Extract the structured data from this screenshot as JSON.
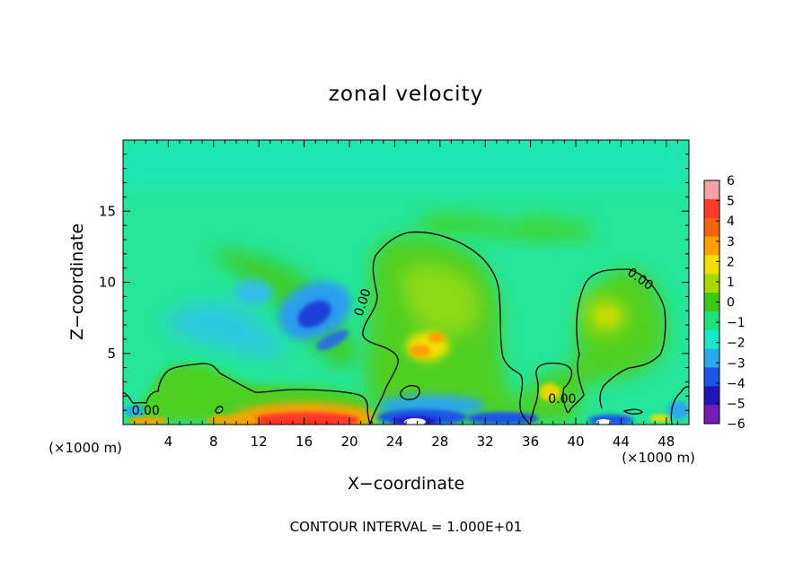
{
  "chart_data": {
    "type": "heatmap",
    "title": "zonal velocity",
    "xlabel": "X−coordinate",
    "ylabel": "Z−coordinate",
    "x_unit_left": "(×1000 m)",
    "x_unit_right": "(×1000 m)",
    "xlim": [
      0,
      50
    ],
    "ylim": [
      0,
      20
    ],
    "x_ticks": [
      {
        "value": 4,
        "label": "4"
      },
      {
        "value": 8,
        "label": "8"
      },
      {
        "value": 12,
        "label": "12"
      },
      {
        "value": 16,
        "label": "16"
      },
      {
        "value": 20,
        "label": "20"
      },
      {
        "value": 24,
        "label": "24"
      },
      {
        "value": 28,
        "label": "28"
      },
      {
        "value": 32,
        "label": "32"
      },
      {
        "value": 36,
        "label": "36"
      },
      {
        "value": 40,
        "label": "40"
      },
      {
        "value": 44,
        "label": "44"
      },
      {
        "value": 48,
        "label": "48"
      }
    ],
    "y_ticks": [
      {
        "value": 5,
        "label": "5"
      },
      {
        "value": 10,
        "label": "10"
      },
      {
        "value": 15,
        "label": "15"
      }
    ],
    "colorbar": {
      "range": [
        -6,
        6
      ],
      "labels": [
        "6",
        "5",
        "4",
        "3",
        "2",
        "1",
        "0",
        "−1",
        "−2",
        "−3",
        "−4",
        "−5",
        "−6"
      ],
      "colors": [
        "#f3a3a3",
        "#ff3b2a",
        "#f5640c",
        "#ffa000",
        "#f2df00",
        "#a6d900",
        "#3dc81a",
        "#1fe07a",
        "#19e8c8",
        "#2aa7ee",
        "#1f55e6",
        "#2016b8",
        "#7a1bb5"
      ]
    },
    "contour_labels": [
      {
        "x": 21.5,
        "z": 8.5,
        "text": "0.00"
      },
      {
        "x": 45.5,
        "z": 10.0,
        "text": "0.00"
      },
      {
        "x": 38.8,
        "z": 1.5,
        "text": "0.00"
      },
      {
        "x": 2.0,
        "z": 0.7,
        "text": "0.00"
      }
    ],
    "footer": "CONTOUR INTERVAL = 1.000E+01",
    "features": [
      {
        "x": 16.3,
        "z": 7.8,
        "value": -4.5
      },
      {
        "x": 17.8,
        "z": 5.8,
        "value": -3.2
      },
      {
        "x": 11.5,
        "z": 9.5,
        "value": -2.2
      },
      {
        "x": 26.5,
        "z": 5.5,
        "value": 2.8
      },
      {
        "x": 43.0,
        "z": 7.5,
        "value": 1.6
      },
      {
        "x": 16.0,
        "z": 0.4,
        "value": 4.5
      },
      {
        "x": 26.0,
        "z": 0.3,
        "value": -5.0
      },
      {
        "x": 28.0,
        "z": 1.6,
        "value": -3.0
      },
      {
        "x": 38.5,
        "z": 2.0,
        "value": 2.2
      }
    ]
  }
}
